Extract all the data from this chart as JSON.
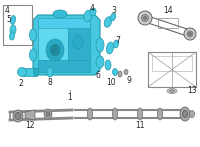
{
  "bg": "#ffffff",
  "pc": "#45c8e0",
  "ec": "#2299aa",
  "gc": "#aaaaaa",
  "lc": "#666666",
  "figsize": [
    2.0,
    1.47
  ],
  "dpi": 100,
  "label_fs": 5.5
}
